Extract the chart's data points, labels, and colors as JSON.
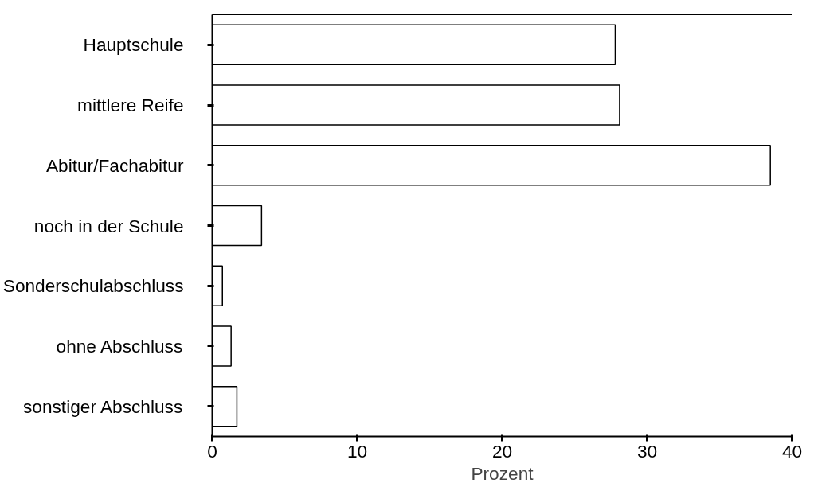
{
  "chart_data": {
    "type": "bar",
    "orientation": "horizontal",
    "xlabel": "Prozent",
    "categories": [
      "Hauptschule",
      "mittlere Reife",
      "Abitur/Fachabitur",
      "noch in der Schule",
      "Sonderschulabschluss",
      "ohne Abschluss",
      "sonstiger Abschluss"
    ],
    "values": [
      27.8,
      28.1,
      38.5,
      3.4,
      0.7,
      1.3,
      1.7
    ],
    "color": "#ffffff",
    "xlim": [
      0,
      40
    ],
    "xticks": [
      0,
      10,
      20,
      30,
      40
    ],
    "grid": false
  }
}
